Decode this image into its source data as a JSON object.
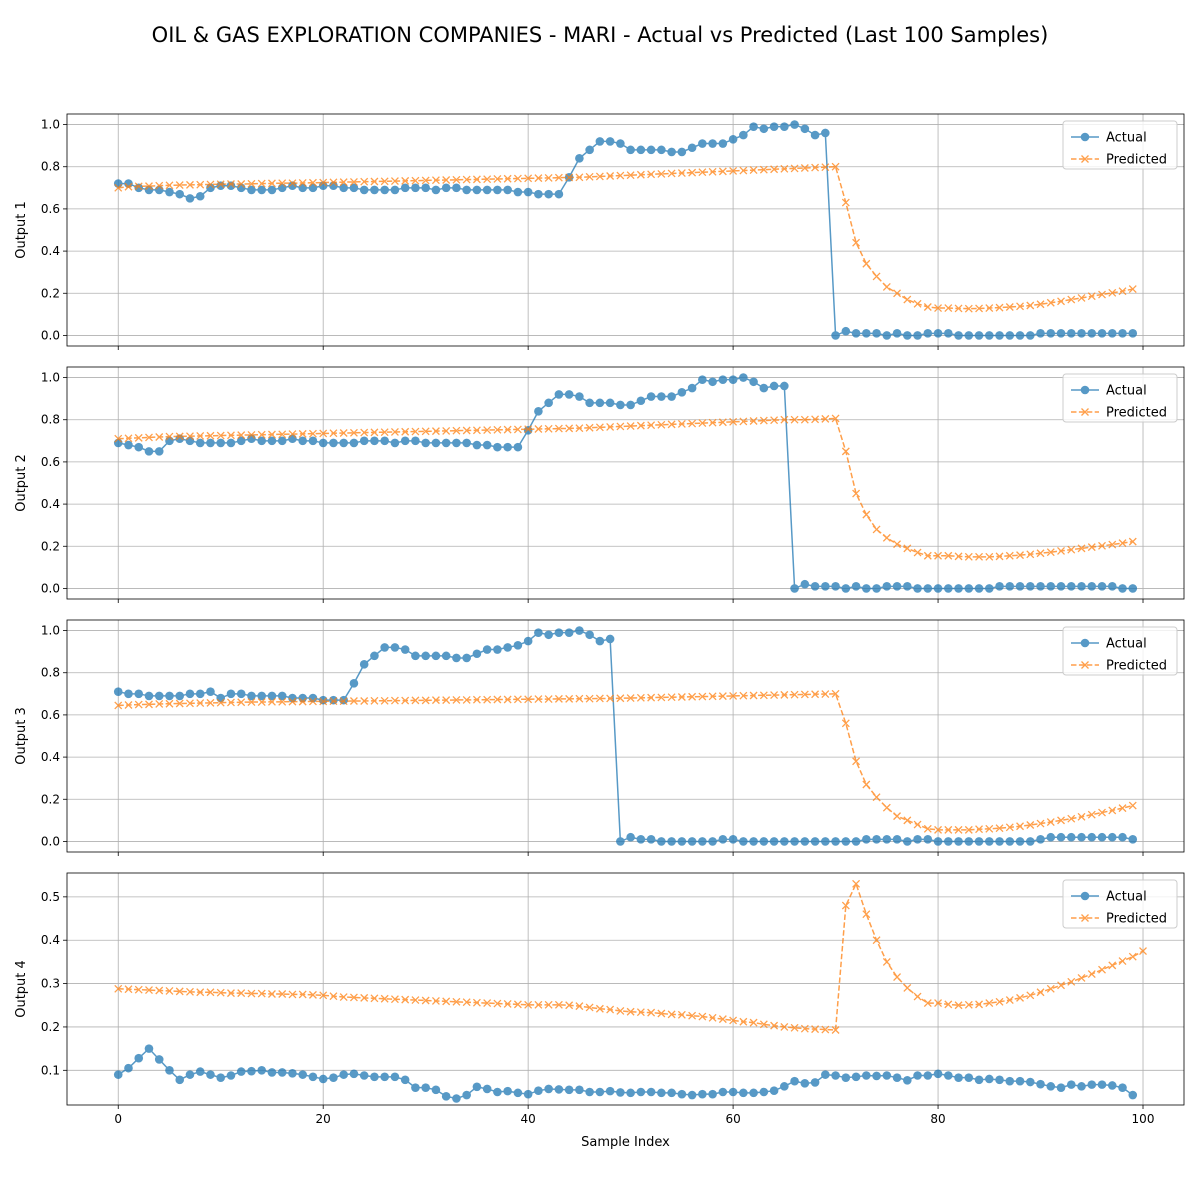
{
  "title": "OIL & GAS EXPLORATION COMPANIES - MARI - Actual vs Predicted (Last 100 Samples)",
  "xlabel": "Sample Index",
  "colors": {
    "actual": "#1f77b4",
    "predicted": "#ff7f0e",
    "grid": "#b0b0b0"
  },
  "chart_data": [
    {
      "type": "line",
      "ylabel": "Output 1",
      "xlim": [
        -5,
        104
      ],
      "ylim": [
        -0.05,
        1.05
      ],
      "xticks": [
        0,
        20,
        40,
        60,
        80,
        100
      ],
      "yticks": [
        0.0,
        0.2,
        0.4,
        0.6,
        0.8,
        1.0
      ],
      "ytick_labels": [
        "0.0",
        "0.2",
        "0.4",
        "0.6",
        "0.8",
        "1.0"
      ],
      "grid": true,
      "legend": "upper right",
      "series": [
        {
          "name": "Actual",
          "marker": "o",
          "linestyle": "solid",
          "values": [
            0.72,
            0.72,
            0.7,
            0.69,
            0.69,
            0.68,
            0.67,
            0.65,
            0.66,
            0.7,
            0.71,
            0.71,
            0.7,
            0.69,
            0.69,
            0.69,
            0.7,
            0.71,
            0.7,
            0.7,
            0.71,
            0.71,
            0.7,
            0.7,
            0.69,
            0.69,
            0.69,
            0.69,
            0.7,
            0.7,
            0.7,
            0.69,
            0.7,
            0.7,
            0.69,
            0.69,
            0.69,
            0.69,
            0.69,
            0.68,
            0.68,
            0.67,
            0.67,
            0.67,
            0.75,
            0.84,
            0.88,
            0.92,
            0.92,
            0.91,
            0.88,
            0.88,
            0.88,
            0.88,
            0.87,
            0.87,
            0.89,
            0.91,
            0.91,
            0.91,
            0.93,
            0.95,
            0.99,
            0.98,
            0.99,
            0.99,
            1.0,
            0.98,
            0.95,
            0.96,
            0.0,
            0.02,
            0.01,
            0.01,
            0.01,
            0.0,
            0.01,
            0.0,
            0.0,
            0.01,
            0.01,
            0.01,
            0.0,
            0.0,
            0.0,
            0.0,
            0.0,
            0.0,
            0.0,
            0.0,
            0.01,
            0.01,
            0.01,
            0.01,
            0.01,
            0.01,
            0.01,
            0.01,
            0.01,
            0.01
          ]
        },
        {
          "name": "Predicted",
          "marker": "x",
          "linestyle": "dashed",
          "values": [
            0.7,
            0.705,
            0.707,
            0.708,
            0.71,
            0.712,
            0.713,
            0.714,
            0.715,
            0.716,
            0.717,
            0.718,
            0.718,
            0.719,
            0.72,
            0.721,
            0.722,
            0.722,
            0.723,
            0.724,
            0.725,
            0.726,
            0.727,
            0.728,
            0.729,
            0.73,
            0.731,
            0.732,
            0.733,
            0.734,
            0.735,
            0.736,
            0.737,
            0.738,
            0.739,
            0.74,
            0.741,
            0.742,
            0.743,
            0.744,
            0.745,
            0.746,
            0.747,
            0.748,
            0.749,
            0.75,
            0.752,
            0.754,
            0.756,
            0.758,
            0.76,
            0.762,
            0.764,
            0.766,
            0.768,
            0.77,
            0.772,
            0.774,
            0.776,
            0.778,
            0.78,
            0.782,
            0.784,
            0.786,
            0.788,
            0.79,
            0.792,
            0.794,
            0.796,
            0.798,
            0.8,
            0.63,
            0.44,
            0.34,
            0.28,
            0.23,
            0.2,
            0.17,
            0.15,
            0.135,
            0.13,
            0.13,
            0.128,
            0.127,
            0.128,
            0.13,
            0.132,
            0.135,
            0.138,
            0.142,
            0.148,
            0.155,
            0.162,
            0.17,
            0.178,
            0.186,
            0.194,
            0.202,
            0.21,
            0.22
          ]
        }
      ]
    },
    {
      "type": "line",
      "ylabel": "Output 2",
      "xlim": [
        -5,
        104
      ],
      "ylim": [
        -0.05,
        1.05
      ],
      "xticks": [
        0,
        20,
        40,
        60,
        80,
        100
      ],
      "yticks": [
        0.0,
        0.2,
        0.4,
        0.6,
        0.8,
        1.0
      ],
      "ytick_labels": [
        "0.0",
        "0.2",
        "0.4",
        "0.6",
        "0.8",
        "1.0"
      ],
      "grid": true,
      "legend": "upper right",
      "series": [
        {
          "name": "Actual",
          "marker": "o",
          "linestyle": "solid",
          "values": [
            0.69,
            0.68,
            0.67,
            0.65,
            0.65,
            0.7,
            0.71,
            0.7,
            0.69,
            0.69,
            0.69,
            0.69,
            0.7,
            0.71,
            0.7,
            0.7,
            0.7,
            0.71,
            0.7,
            0.7,
            0.69,
            0.69,
            0.69,
            0.69,
            0.7,
            0.7,
            0.7,
            0.69,
            0.7,
            0.7,
            0.69,
            0.69,
            0.69,
            0.69,
            0.69,
            0.68,
            0.68,
            0.67,
            0.67,
            0.67,
            0.75,
            0.84,
            0.88,
            0.92,
            0.92,
            0.91,
            0.88,
            0.88,
            0.88,
            0.87,
            0.87,
            0.89,
            0.91,
            0.91,
            0.91,
            0.93,
            0.95,
            0.99,
            0.98,
            0.99,
            0.99,
            1.0,
            0.98,
            0.95,
            0.96,
            0.96,
            0.0,
            0.02,
            0.01,
            0.01,
            0.01,
            0.0,
            0.01,
            0.0,
            0.0,
            0.01,
            0.01,
            0.01,
            0.0,
            0.0,
            0.0,
            0.0,
            0.0,
            0.0,
            0.0,
            0.0,
            0.01,
            0.01,
            0.01,
            0.01,
            0.01,
            0.01,
            0.01,
            0.01,
            0.01,
            0.01,
            0.01,
            0.01,
            0.0,
            0.0
          ]
        },
        {
          "name": "Predicted",
          "marker": "x",
          "linestyle": "dashed",
          "values": [
            0.71,
            0.712,
            0.714,
            0.716,
            0.718,
            0.72,
            0.721,
            0.722,
            0.723,
            0.724,
            0.725,
            0.726,
            0.727,
            0.728,
            0.729,
            0.73,
            0.731,
            0.732,
            0.733,
            0.734,
            0.735,
            0.736,
            0.737,
            0.738,
            0.739,
            0.74,
            0.741,
            0.742,
            0.743,
            0.744,
            0.745,
            0.746,
            0.747,
            0.748,
            0.749,
            0.75,
            0.751,
            0.752,
            0.753,
            0.754,
            0.755,
            0.756,
            0.757,
            0.758,
            0.759,
            0.76,
            0.762,
            0.764,
            0.766,
            0.768,
            0.77,
            0.772,
            0.774,
            0.776,
            0.778,
            0.78,
            0.782,
            0.784,
            0.786,
            0.788,
            0.79,
            0.792,
            0.794,
            0.796,
            0.798,
            0.8,
            0.8,
            0.8,
            0.802,
            0.804,
            0.806,
            0.65,
            0.45,
            0.35,
            0.28,
            0.24,
            0.21,
            0.19,
            0.17,
            0.155,
            0.155,
            0.155,
            0.152,
            0.15,
            0.15,
            0.15,
            0.152,
            0.155,
            0.158,
            0.162,
            0.167,
            0.172,
            0.178,
            0.184,
            0.19,
            0.196,
            0.202,
            0.208,
            0.215,
            0.222
          ]
        }
      ]
    },
    {
      "type": "line",
      "ylabel": "Output 3",
      "xlim": [
        -5,
        104
      ],
      "ylim": [
        -0.05,
        1.05
      ],
      "xticks": [
        0,
        20,
        40,
        60,
        80,
        100
      ],
      "yticks": [
        0.0,
        0.2,
        0.4,
        0.6,
        0.8,
        1.0
      ],
      "ytick_labels": [
        "0.0",
        "0.2",
        "0.4",
        "0.6",
        "0.8",
        "1.0"
      ],
      "grid": true,
      "legend": "upper right",
      "series": [
        {
          "name": "Actual",
          "marker": "o",
          "linestyle": "solid",
          "values": [
            0.71,
            0.7,
            0.7,
            0.69,
            0.69,
            0.69,
            0.69,
            0.7,
            0.7,
            0.71,
            0.68,
            0.7,
            0.7,
            0.69,
            0.69,
            0.69,
            0.69,
            0.68,
            0.68,
            0.68,
            0.67,
            0.67,
            0.67,
            0.75,
            0.84,
            0.88,
            0.92,
            0.92,
            0.91,
            0.88,
            0.88,
            0.88,
            0.88,
            0.87,
            0.87,
            0.89,
            0.91,
            0.91,
            0.92,
            0.93,
            0.95,
            0.99,
            0.98,
            0.99,
            0.99,
            1.0,
            0.98,
            0.95,
            0.96,
            0.0,
            0.02,
            0.01,
            0.01,
            0.0,
            0.0,
            0.0,
            0.0,
            0.0,
            0.0,
            0.01,
            0.01,
            0.0,
            0.0,
            0.0,
            0.0,
            0.0,
            0.0,
            0.0,
            0.0,
            0.0,
            0.0,
            0.0,
            0.0,
            0.01,
            0.01,
            0.01,
            0.01,
            0.0,
            0.01,
            0.01,
            0.0,
            0.0,
            0.0,
            0.0,
            0.0,
            0.0,
            0.0,
            0.0,
            0.0,
            0.0,
            0.01,
            0.02,
            0.02,
            0.02,
            0.02,
            0.02,
            0.02,
            0.02,
            0.02,
            0.01
          ]
        },
        {
          "name": "Predicted",
          "marker": "x",
          "linestyle": "dashed",
          "values": [
            0.645,
            0.647,
            0.649,
            0.65,
            0.652,
            0.653,
            0.654,
            0.655,
            0.656,
            0.657,
            0.658,
            0.659,
            0.66,
            0.661,
            0.661,
            0.662,
            0.662,
            0.663,
            0.663,
            0.664,
            0.664,
            0.665,
            0.665,
            0.666,
            0.666,
            0.667,
            0.667,
            0.668,
            0.668,
            0.669,
            0.669,
            0.67,
            0.67,
            0.671,
            0.671,
            0.672,
            0.672,
            0.673,
            0.673,
            0.674,
            0.674,
            0.675,
            0.675,
            0.676,
            0.676,
            0.677,
            0.677,
            0.678,
            0.678,
            0.679,
            0.68,
            0.681,
            0.682,
            0.683,
            0.684,
            0.685,
            0.686,
            0.687,
            0.688,
            0.689,
            0.69,
            0.691,
            0.692,
            0.693,
            0.694,
            0.695,
            0.696,
            0.697,
            0.698,
            0.699,
            0.7,
            0.56,
            0.38,
            0.27,
            0.21,
            0.16,
            0.12,
            0.1,
            0.08,
            0.06,
            0.055,
            0.055,
            0.055,
            0.055,
            0.058,
            0.06,
            0.063,
            0.067,
            0.072,
            0.078,
            0.085,
            0.092,
            0.1,
            0.108,
            0.117,
            0.127,
            0.137,
            0.147,
            0.158,
            0.17
          ]
        }
      ]
    },
    {
      "type": "line",
      "ylabel": "Output 4",
      "xlabel": "Sample Index",
      "xlim": [
        -5,
        104
      ],
      "ylim": [
        0.02,
        0.555
      ],
      "xticks": [
        0,
        20,
        40,
        60,
        80,
        100
      ],
      "yticks": [
        0.1,
        0.2,
        0.3,
        0.4,
        0.5
      ],
      "ytick_labels": [
        "0.1",
        "0.2",
        "0.3",
        "0.4",
        "0.5"
      ],
      "grid": true,
      "legend": "upper right",
      "series": [
        {
          "name": "Actual",
          "marker": "o",
          "linestyle": "solid",
          "values": [
            0.09,
            0.105,
            0.128,
            0.15,
            0.125,
            0.1,
            0.078,
            0.09,
            0.097,
            0.09,
            0.083,
            0.088,
            0.097,
            0.098,
            0.1,
            0.095,
            0.095,
            0.093,
            0.09,
            0.085,
            0.08,
            0.083,
            0.09,
            0.092,
            0.088,
            0.085,
            0.085,
            0.085,
            0.078,
            0.06,
            0.06,
            0.055,
            0.04,
            0.035,
            0.043,
            0.062,
            0.057,
            0.05,
            0.052,
            0.048,
            0.045,
            0.053,
            0.057,
            0.056,
            0.055,
            0.055,
            0.05,
            0.05,
            0.052,
            0.049,
            0.048,
            0.05,
            0.05,
            0.048,
            0.048,
            0.045,
            0.043,
            0.045,
            0.045,
            0.05,
            0.05,
            0.048,
            0.048,
            0.05,
            0.053,
            0.063,
            0.075,
            0.07,
            0.072,
            0.09,
            0.088,
            0.083,
            0.085,
            0.088,
            0.087,
            0.088,
            0.083,
            0.077,
            0.088,
            0.088,
            0.092,
            0.088,
            0.083,
            0.083,
            0.078,
            0.08,
            0.078,
            0.075,
            0.075,
            0.073,
            0.068,
            0.063,
            0.06,
            0.067,
            0.063,
            0.067,
            0.067,
            0.065,
            0.06,
            0.043
          ]
        },
        {
          "name": "Predicted",
          "marker": "x",
          "linestyle": "dashed",
          "values": [
            0.288,
            0.287,
            0.286,
            0.285,
            0.284,
            0.283,
            0.282,
            0.281,
            0.28,
            0.28,
            0.279,
            0.278,
            0.278,
            0.277,
            0.277,
            0.276,
            0.276,
            0.275,
            0.275,
            0.274,
            0.273,
            0.271,
            0.269,
            0.268,
            0.267,
            0.266,
            0.265,
            0.264,
            0.263,
            0.262,
            0.261,
            0.26,
            0.259,
            0.258,
            0.257,
            0.256,
            0.255,
            0.254,
            0.253,
            0.252,
            0.251,
            0.251,
            0.251,
            0.251,
            0.25,
            0.248,
            0.245,
            0.242,
            0.24,
            0.237,
            0.235,
            0.234,
            0.233,
            0.231,
            0.229,
            0.228,
            0.226,
            0.224,
            0.221,
            0.218,
            0.215,
            0.212,
            0.21,
            0.206,
            0.203,
            0.2,
            0.198,
            0.196,
            0.195,
            0.194,
            0.193,
            0.48,
            0.53,
            0.46,
            0.4,
            0.35,
            0.315,
            0.29,
            0.27,
            0.255,
            0.255,
            0.252,
            0.25,
            0.251,
            0.252,
            0.255,
            0.258,
            0.262,
            0.267,
            0.273,
            0.28,
            0.288,
            0.296,
            0.304,
            0.313,
            0.322,
            0.332,
            0.342,
            0.352,
            0.362,
            0.375
          ]
        }
      ]
    }
  ]
}
